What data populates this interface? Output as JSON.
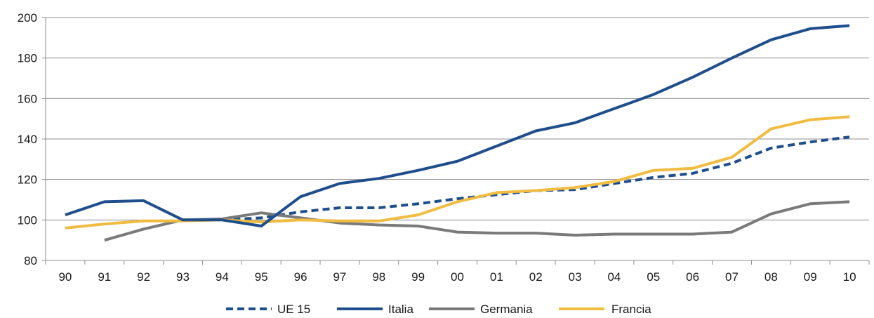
{
  "chart_data": {
    "type": "line",
    "title": "",
    "xlabel": "",
    "ylabel": "",
    "categories": [
      "90",
      "91",
      "92",
      "93",
      "94",
      "95",
      "96",
      "97",
      "98",
      "99",
      "00",
      "01",
      "02",
      "03",
      "04",
      "05",
      "06",
      "07",
      "08",
      "09",
      "10"
    ],
    "ylim": [
      80,
      200
    ],
    "yticks": [
      80,
      100,
      120,
      140,
      160,
      180,
      200
    ],
    "grid": "horizontal",
    "legend_position": "bottom",
    "series": [
      {
        "name": "UE 15",
        "color": "#1f4e8c",
        "dash": true,
        "values": [
          null,
          null,
          null,
          null,
          100,
          101,
          104,
          106,
          106,
          108,
          110.5,
          112.5,
          114.5,
          115,
          118,
          121,
          123,
          128,
          135.5,
          138.5,
          141
        ]
      },
      {
        "name": "Italia",
        "color": "#1f4e8c",
        "dash": false,
        "values": [
          102.5,
          109,
          109.5,
          100,
          100,
          97,
          111.5,
          118,
          120.5,
          124.5,
          129,
          136.5,
          144,
          148,
          155,
          162,
          170.5,
          180,
          189,
          194.5,
          196
        ]
      },
      {
        "name": "Germania",
        "color": "#7a7a7a",
        "dash": false,
        "values": [
          null,
          90,
          95.5,
          100,
          100.5,
          103.5,
          101,
          98.5,
          97.5,
          97,
          94,
          93.5,
          93.5,
          92.5,
          93,
          93,
          93,
          94,
          103,
          108,
          109
        ]
      },
      {
        "name": "Francia",
        "color": "#f0bc42",
        "dash": false,
        "values": [
          96,
          98,
          99.5,
          99.5,
          100,
          99,
          100,
          99.5,
          99.5,
          102.5,
          109,
          113.5,
          114.5,
          116,
          119,
          124.5,
          125.5,
          131,
          145,
          149.5,
          151
        ]
      }
    ]
  }
}
